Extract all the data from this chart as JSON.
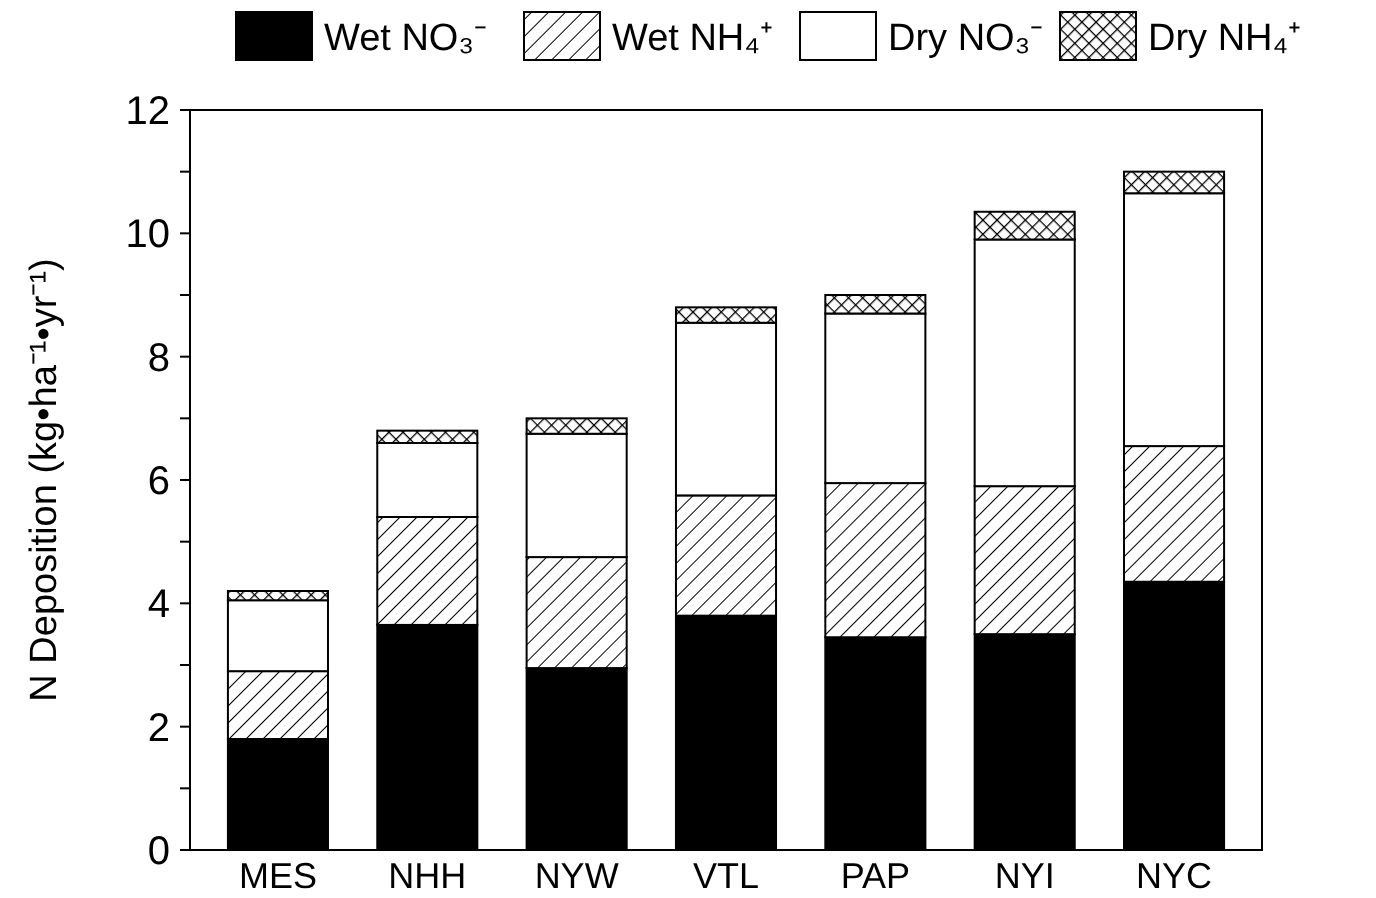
{
  "chart_data": {
    "type": "bar",
    "stacked": true,
    "ylabel": "N Deposition (kg•ha⁻¹•yr⁻¹)",
    "categories": [
      "MES",
      "NHH",
      "NYW",
      "VTL",
      "PAP",
      "NYI",
      "NYC"
    ],
    "series": [
      {
        "name": "Wet NO₃⁻",
        "color": "#000000",
        "values": [
          1.8,
          3.65,
          2.95,
          3.8,
          3.45,
          3.5,
          4.35
        ]
      },
      {
        "name": "Wet NH₄⁺",
        "color": "#000000",
        "values": [
          1.1,
          1.75,
          1.8,
          1.95,
          2.5,
          2.4,
          2.2
        ]
      },
      {
        "name": "Dry NO₃⁻",
        "color": "#ffffff",
        "values": [
          1.15,
          1.2,
          2.0,
          2.8,
          2.75,
          4.0,
          4.1
        ]
      },
      {
        "name": "Dry NH₄⁺",
        "color": "#000000",
        "values": [
          0.15,
          0.2,
          0.25,
          0.25,
          0.3,
          0.45,
          0.35
        ]
      }
    ],
    "ylim": [
      0,
      12
    ],
    "yticks": [
      0,
      {
        "value": 1,
        "label": null
      },
      2,
      {
        "value": 3,
        "label": null
      },
      4,
      {
        "value": 5,
        "label": null
      },
      6,
      {
        "value": 7,
        "label": null
      },
      8,
      {
        "value": 9,
        "label": null
      },
      10,
      {
        "value": 11,
        "label": null
      },
      12
    ],
    "grid": false,
    "legend": "top"
  }
}
